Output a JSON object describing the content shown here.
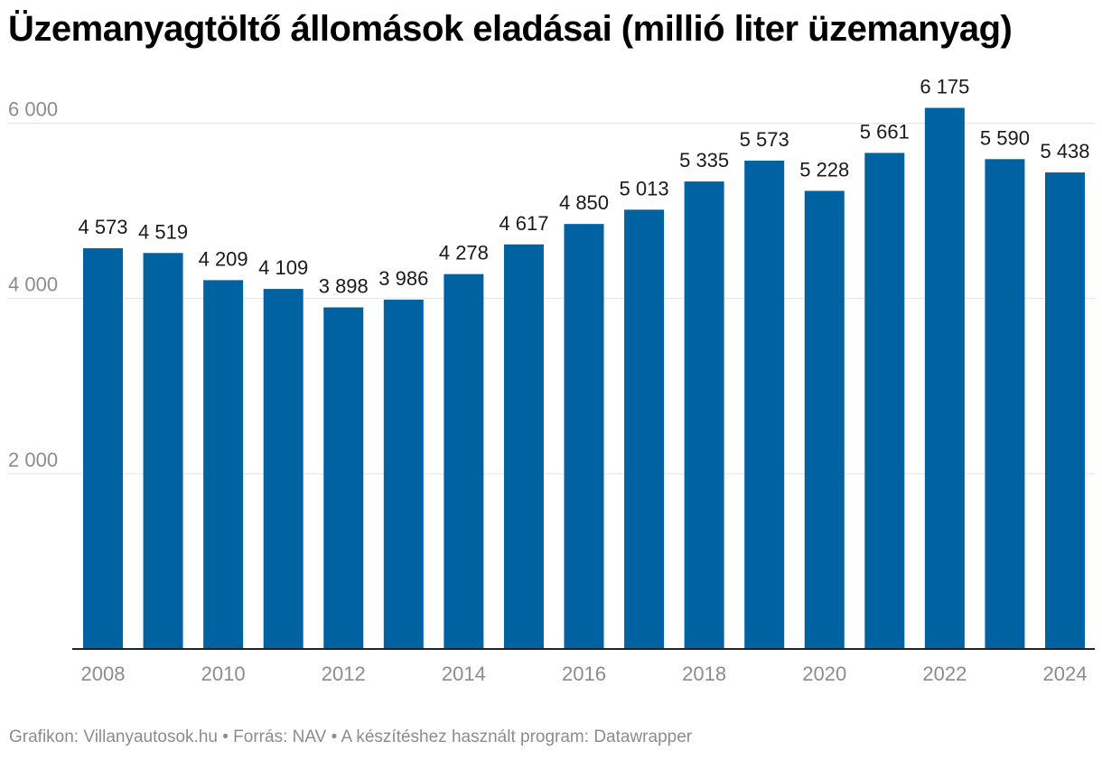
{
  "title": "Üzemanyagtöltő állomások eladásai (millió liter üzemanyag)",
  "footer": {
    "credit": "Grafikon: Villanyautosok.hu",
    "separator": "•",
    "source": "Forrás: NAV",
    "tool": "A készítéshez használt program: Datawrapper"
  },
  "colors": {
    "bar": "#0062a0",
    "grid": "#e3e3e3",
    "axis": "#222222",
    "tick": "#8c8c8c",
    "label": "#1a1a1a"
  },
  "chart_data": {
    "type": "bar",
    "title": "Üzemanyagtöltő állomások eladásai (millió liter üzemanyag)",
    "xlabel": "",
    "ylabel": "",
    "categories": [
      "2008",
      "2009",
      "2010",
      "2011",
      "2012",
      "2013",
      "2014",
      "2015",
      "2016",
      "2017",
      "2018",
      "2019",
      "2020",
      "2021",
      "2022",
      "2023",
      "2024"
    ],
    "values": [
      4573,
      4519,
      4209,
      4109,
      3898,
      3986,
      4278,
      4617,
      4850,
      5013,
      5335,
      5573,
      5228,
      5661,
      6175,
      5590,
      5438
    ],
    "value_labels": [
      "4 573",
      "4 519",
      "4 209",
      "4 109",
      "3 898",
      "3 986",
      "4 278",
      "4 617",
      "4 850",
      "5 013",
      "5 335",
      "5 573",
      "5 228",
      "5 661",
      "6 175",
      "5 590",
      "5 438"
    ],
    "x_tick_labels": [
      "2008",
      "",
      "2010",
      "",
      "2012",
      "",
      "2014",
      "",
      "2016",
      "",
      "2018",
      "",
      "2020",
      "",
      "2022",
      "",
      "2024"
    ],
    "y_ticks": [
      2000,
      4000,
      6000
    ],
    "y_tick_labels": [
      "2 000",
      "4 000",
      "6 000"
    ],
    "ylim": [
      0,
      6000
    ],
    "grid": true
  }
}
